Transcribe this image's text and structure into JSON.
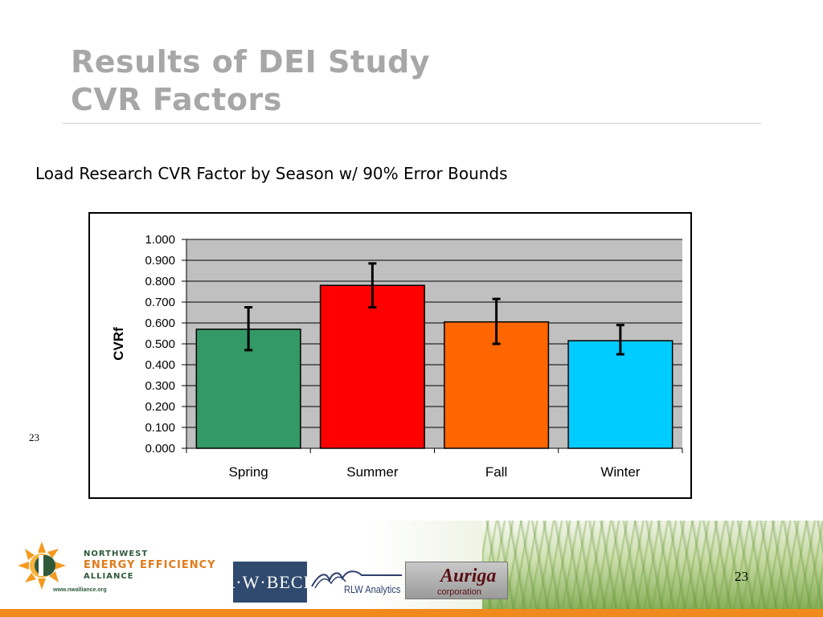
{
  "slide": {
    "title_line1": "Results of DEI Study",
    "title_line2": "CVR Factors",
    "caption": "Load Research CVR Factor by Season w/ 90% Error Bounds",
    "page_number": "23"
  },
  "footer": {
    "nea_line1": "NORTHWEST",
    "nea_line2": "ENERGY EFFICIENCY",
    "nea_line3": "ALLIANCE",
    "nea_website": "www.nwalliance.org",
    "rwbeck_label": "R·W·BECK",
    "rlw_label": "RLW Analytics",
    "auriga_name": "Auriga",
    "auriga_sub": "corporation",
    "page_number": "23"
  },
  "chart_data": {
    "type": "bar",
    "title": "",
    "xlabel": "",
    "ylabel": "CVRf",
    "categories": [
      "Spring",
      "Summer",
      "Fall",
      "Winter"
    ],
    "values": [
      0.57,
      0.78,
      0.605,
      0.515
    ],
    "error_low": [
      0.47,
      0.675,
      0.5,
      0.45
    ],
    "error_high": [
      0.675,
      0.885,
      0.715,
      0.59
    ],
    "colors": [
      "#339966",
      "#ff0000",
      "#ff6600",
      "#00ccff"
    ],
    "ylim": [
      0,
      1
    ],
    "ytick_labels": [
      "0.000",
      "0.100",
      "0.200",
      "0.300",
      "0.400",
      "0.500",
      "0.600",
      "0.700",
      "0.800",
      "0.900",
      "1.000"
    ],
    "plot_background": "#c0c0c0",
    "grid": true,
    "legend": "none"
  }
}
